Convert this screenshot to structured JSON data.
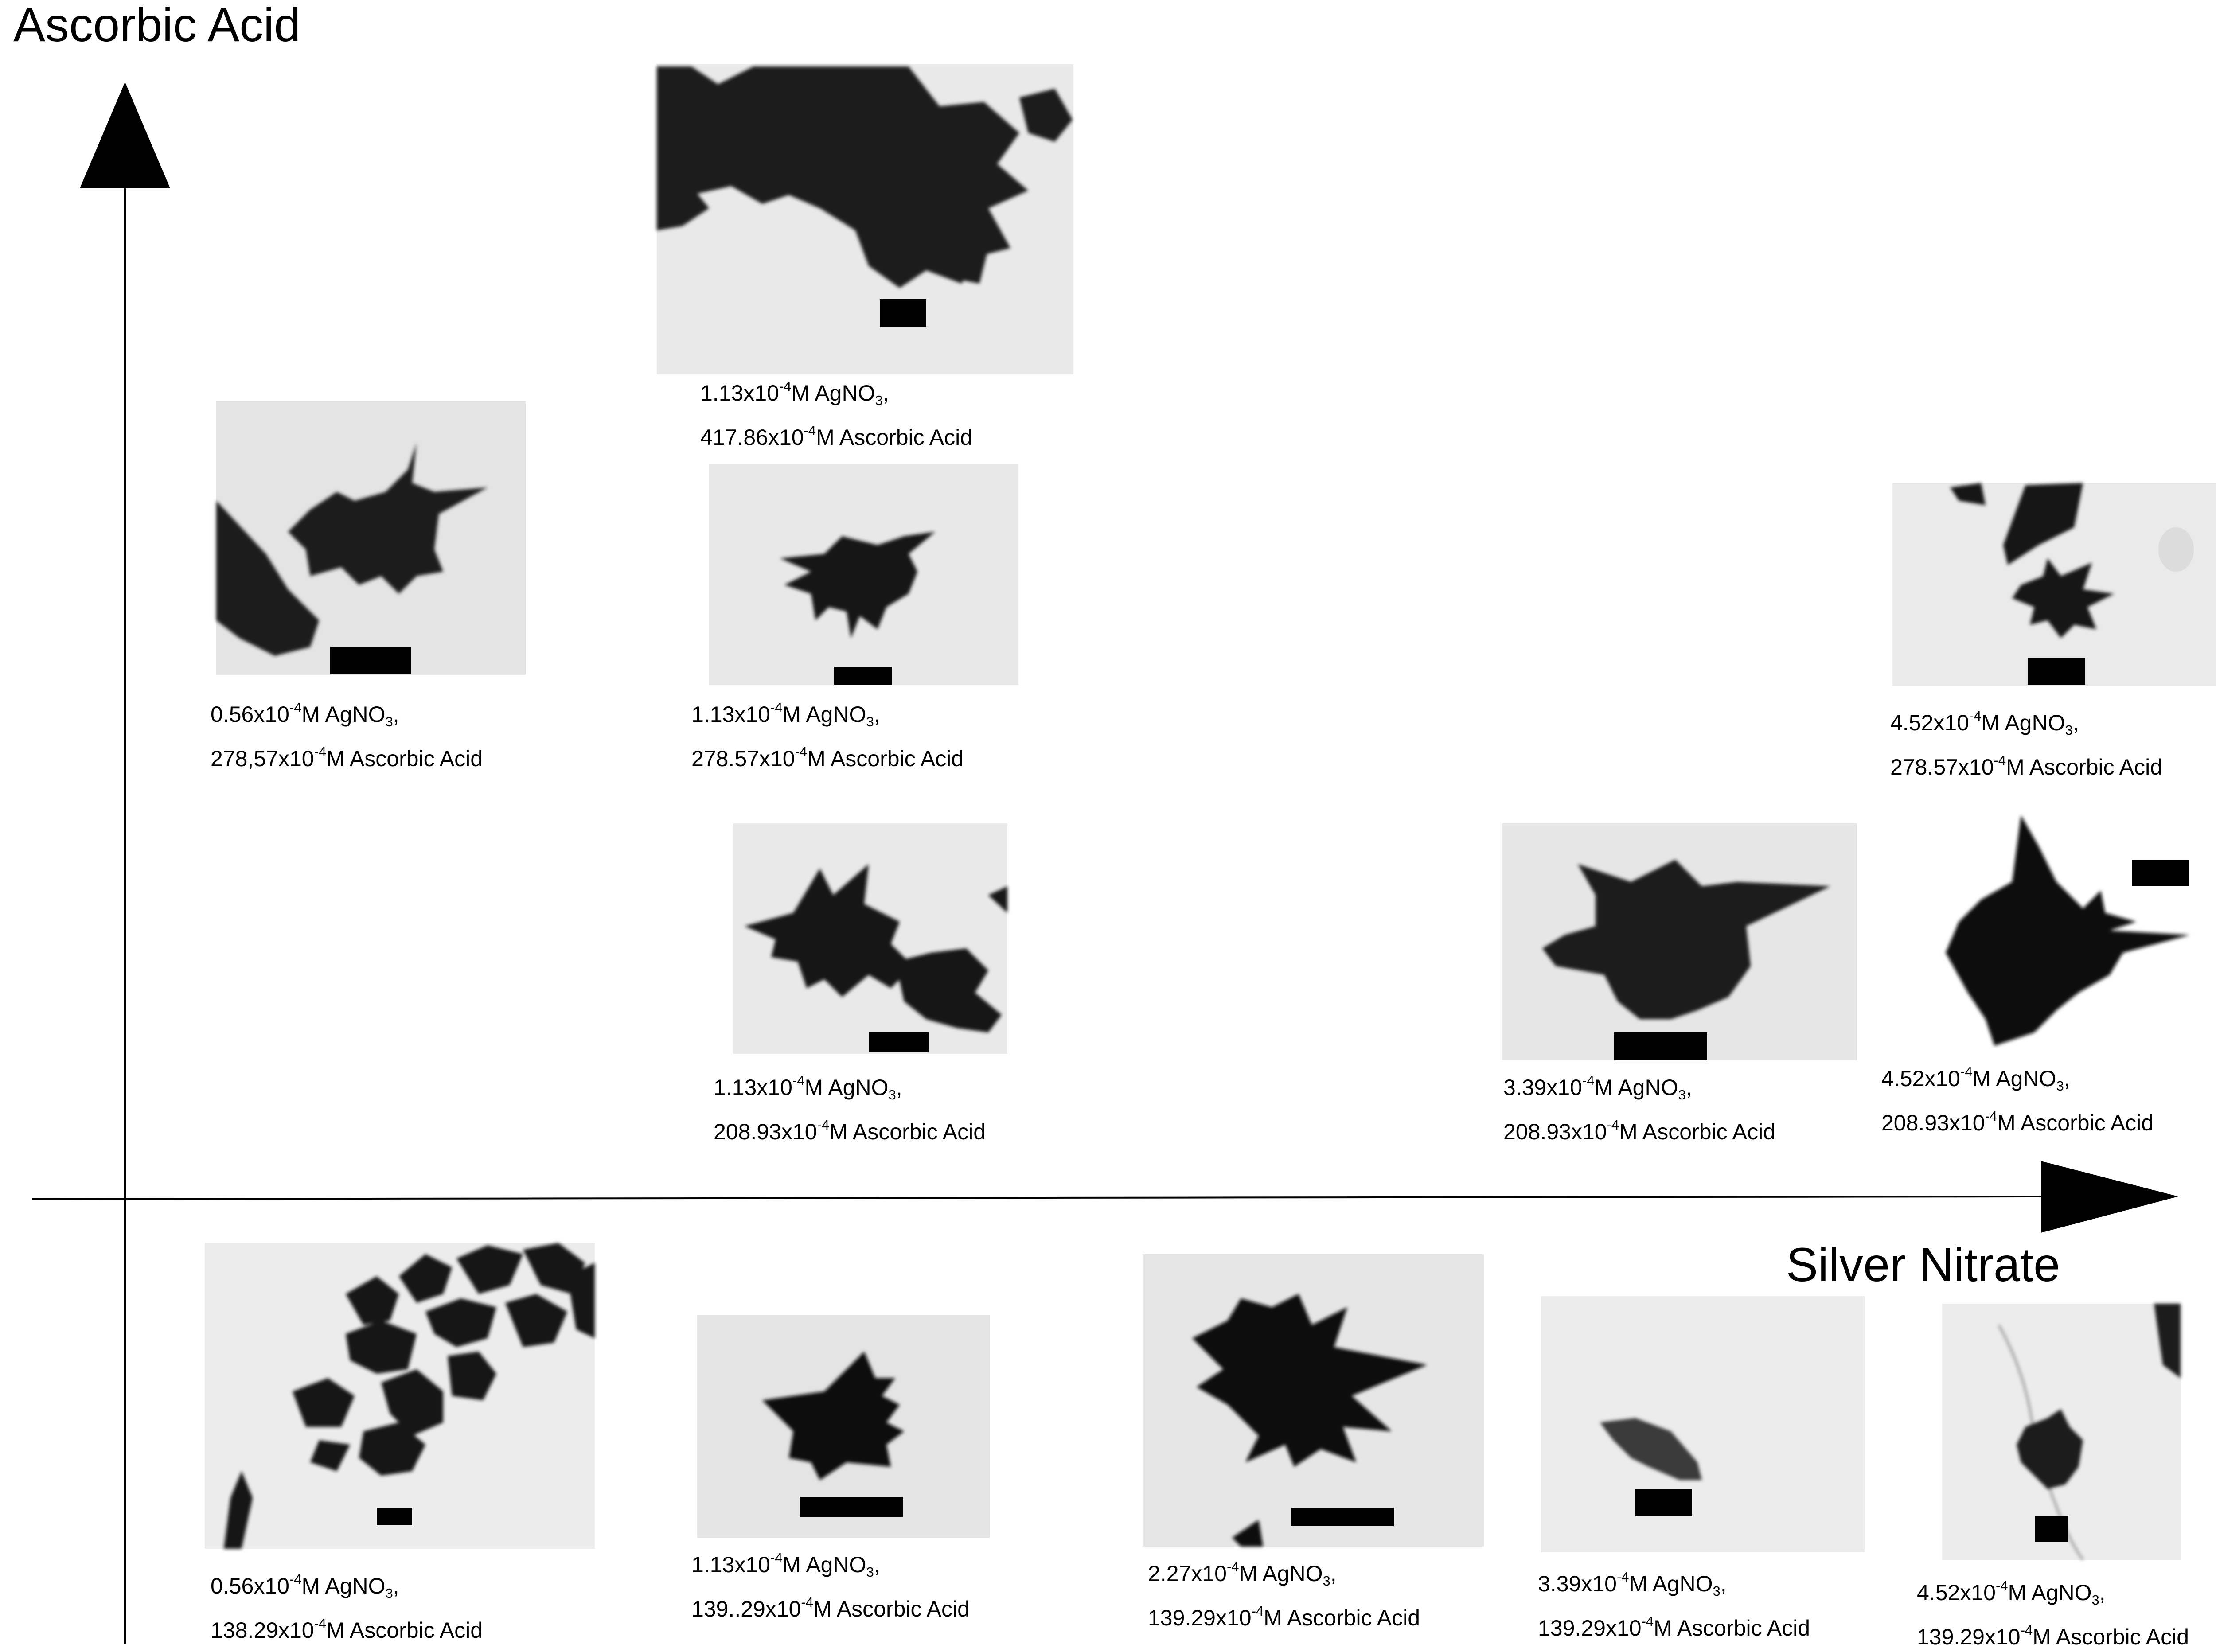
{
  "axes": {
    "y_title": "Ascorbic Acid",
    "x_title": "Silver Nitrate"
  },
  "panels": [
    {
      "id": "p1",
      "ag_value": "1.13",
      "ag_exp": "-4",
      "ag_unit": "M AgNO",
      "ag_sub": "3",
      "aa_value": "417.86",
      "aa_exp": "-4",
      "aa_unit": "M Ascorbic Acid"
    },
    {
      "id": "p2",
      "ag_value": "0.56",
      "ag_exp": "-4",
      "ag_unit": "M AgNO",
      "ag_sub": "3",
      "aa_value": "278,57",
      "aa_exp": "-4",
      "aa_unit": "M Ascorbic Acid"
    },
    {
      "id": "p3",
      "ag_value": "1.13",
      "ag_exp": "-4",
      "ag_unit": "M AgNO",
      "ag_sub": "3",
      "aa_value": "278.57",
      "aa_exp": "-4",
      "aa_unit": "M Ascorbic Acid"
    },
    {
      "id": "p4",
      "ag_value": "4.52",
      "ag_exp": "-4",
      "ag_unit": "M AgNO",
      "ag_sub": "3",
      "aa_value": "278.57",
      "aa_exp": "-4",
      "aa_unit": "M Ascorbic Acid"
    },
    {
      "id": "p5",
      "ag_value": "1.13",
      "ag_exp": "-4",
      "ag_unit": "M AgNO",
      "ag_sub": "3",
      "aa_value": "208.93",
      "aa_exp": "-4",
      "aa_unit": "M Ascorbic Acid"
    },
    {
      "id": "p6",
      "ag_value": "3.39",
      "ag_exp": "-4",
      "ag_unit": "M AgNO",
      "ag_sub": "3",
      "aa_value": "208.93",
      "aa_exp": "-4",
      "aa_unit": "M Ascorbic Acid"
    },
    {
      "id": "p7",
      "ag_value": "4.52",
      "ag_exp": "-4",
      "ag_unit": "M AgNO",
      "ag_sub": "3",
      "aa_value": "208.93",
      "aa_exp": "-4",
      "aa_unit": "M Ascorbic Acid"
    },
    {
      "id": "p8",
      "ag_value": "0.56",
      "ag_exp": "-4",
      "ag_unit": "M AgNO",
      "ag_sub": "3",
      "aa_value": "138.29",
      "aa_exp": "-4",
      "aa_unit": "M Ascorbic Acid"
    },
    {
      "id": "p9",
      "ag_value": "1.13",
      "ag_exp": "-4",
      "ag_unit": "M AgNO",
      "ag_sub": "3",
      "aa_value": "139..29",
      "aa_exp": "-4",
      "aa_unit": "M Ascorbic Acid"
    },
    {
      "id": "p10",
      "ag_value": "2.27",
      "ag_exp": "-4",
      "ag_unit": "M AgNO",
      "ag_sub": "3",
      "aa_value": "139.29",
      "aa_exp": "-4",
      "aa_unit": "M Ascorbic Acid"
    },
    {
      "id": "p11",
      "ag_value": "3.39",
      "ag_exp": "-4",
      "ag_unit": "M AgNO",
      "ag_sub": "3",
      "aa_value": "139.29",
      "aa_exp": "-4",
      "aa_unit": "M Ascorbic Acid"
    },
    {
      "id": "p12",
      "ag_value": "4.52",
      "ag_exp": "-4",
      "ag_unit": "M AgNO",
      "ag_sub": "3",
      "aa_value": "139.29",
      "aa_exp": "-4",
      "aa_unit": "M Ascorbic Acid"
    }
  ],
  "colors": {
    "micrograph_background": "#e9e9e9",
    "particle": "#151515",
    "axis": "#000000"
  }
}
